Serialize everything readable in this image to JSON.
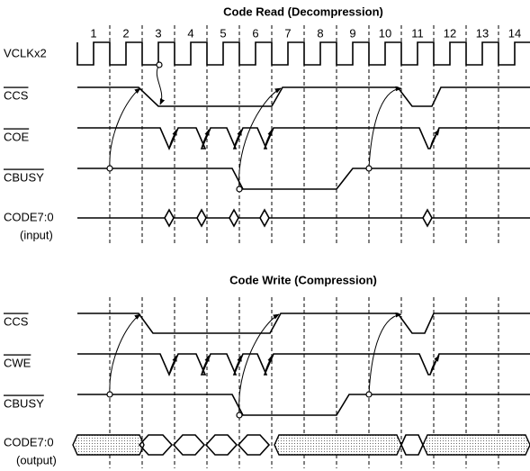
{
  "read": {
    "title": "Code Read (Decompression)",
    "cycles": [
      "1",
      "2",
      "3",
      "4",
      "5",
      "6",
      "7",
      "8",
      "9",
      "10",
      "11",
      "12",
      "13",
      "14"
    ],
    "signals": [
      "VCLKx2",
      "CCS",
      "COE",
      "CBUSY",
      "CODE7:0"
    ],
    "bus_note": "(input)"
  },
  "write": {
    "title": "Code Write (Compression)",
    "signals": [
      "CCS",
      "CWE",
      "CBUSY",
      "CODE7:0"
    ],
    "bus_note": "(output)"
  }
}
